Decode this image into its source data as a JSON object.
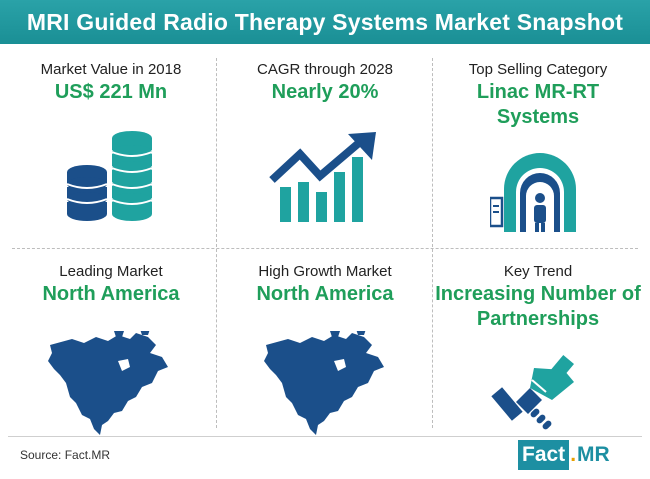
{
  "title": "MRI Guided Radio Therapy Systems Market Snapshot",
  "cells": [
    {
      "label": "Market Value in 2018",
      "value": "US$ 221 Mn",
      "icon": "coin-stacks-icon"
    },
    {
      "label": "CAGR through 2028",
      "value": "Nearly 20%",
      "icon": "growth-chart-icon"
    },
    {
      "label": "Top Selling Category",
      "value_line1": "Linac MR-RT",
      "value_line2": "Systems",
      "icon": "mri-scanner-icon"
    },
    {
      "label": "Leading Market",
      "value": "North America",
      "icon": "north-america-map-icon"
    },
    {
      "label": "High Growth Market",
      "value": "North America",
      "icon": "north-america-map-icon"
    },
    {
      "label": "Key Trend",
      "value_line1": "Increasing Number of",
      "value_line2": "Partnerships",
      "icon": "handshake-icon"
    }
  ],
  "footer": {
    "source": "Source: Fact.MR",
    "logo_left": "Fact",
    "logo_dot": ".",
    "logo_right": "MR"
  },
  "colors": {
    "banner": "#1a8f95",
    "value_text": "#1f9e5a",
    "icon_dark": "#1b4f8a",
    "icon_teal": "#1fa3a0"
  }
}
